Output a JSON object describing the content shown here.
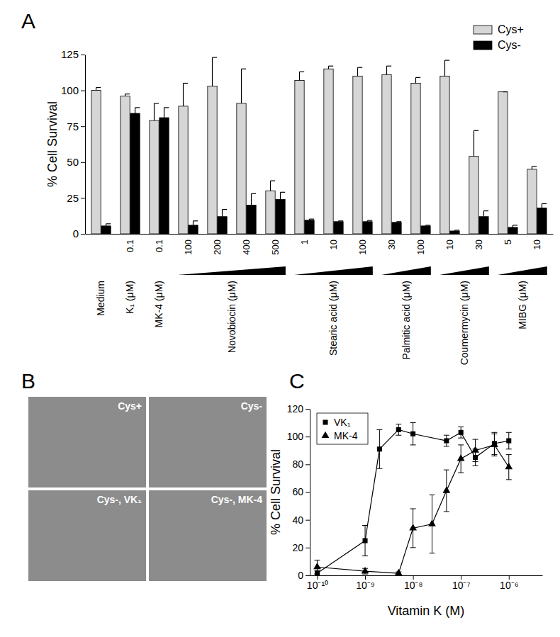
{
  "chart_data": [
    {
      "type": "bar",
      "title": "A",
      "y_label": "% Cell Survival",
      "categories": [
        null,
        "0.1",
        "0.1",
        "100",
        "200",
        "400",
        "500",
        "1",
        "10",
        "100",
        "30",
        "100",
        "10",
        "30",
        "5",
        "10"
      ],
      "groups": [
        {
          "name": "Medium",
          "count": 1
        },
        {
          "name": "K₁ (μM)",
          "count": 1
        },
        {
          "name": "MK-4 (μM)",
          "count": 1
        },
        {
          "name": "Novobiocin (μM)",
          "count": 4
        },
        {
          "name": "Stearic acid (μM)",
          "count": 3
        },
        {
          "name": "Palmitic acid (μM)",
          "count": 2
        },
        {
          "name": "Coumermycin (μM)",
          "count": 2
        },
        {
          "name": "MIBG (μM)",
          "count": 2
        }
      ],
      "series": [
        {
          "name": "Cys+",
          "color": "#d6d6d6",
          "values": [
            100,
            96,
            79,
            89,
            103,
            91,
            30,
            107,
            115,
            110,
            111,
            105,
            110,
            54,
            99,
            45
          ],
          "errors": [
            2,
            1.5,
            12,
            16,
            20,
            24,
            7,
            6,
            2,
            6,
            6,
            4,
            11,
            18,
            0,
            2
          ]
        },
        {
          "name": "Cys-",
          "color": "#000000",
          "values": [
            5.5,
            84,
            81,
            6,
            12,
            20,
            24,
            9.5,
            8.5,
            8.5,
            8,
            5.5,
            2,
            12,
            4.5,
            18
          ],
          "errors": [
            1.5,
            4,
            7,
            3,
            5,
            8,
            5,
            0.8,
            0.5,
            0.8,
            0.5,
            0.5,
            0.5,
            4,
            1.5,
            3
          ]
        }
      ],
      "ylim": [
        0,
        125
      ],
      "yticks": [
        0,
        25,
        50,
        75,
        100,
        125
      ],
      "legend": "top-right"
    },
    {
      "type": "image",
      "title": "B",
      "panels": [
        "Cys+",
        "Cys-",
        "Cys-, VK₁",
        "Cys-, MK-4"
      ]
    },
    {
      "type": "line",
      "title": "C",
      "x_label": "Vitamin K (M)",
      "y_label": "% Cell Survival",
      "log": "x",
      "xlim": [
        7e-11,
        5e-06
      ],
      "xticks": [
        {
          "value": 1e-10,
          "label": "10⁻¹⁰"
        },
        {
          "value": 1e-09,
          "label": "10⁻⁹"
        },
        {
          "value": 1e-08,
          "label": "10⁻⁸"
        },
        {
          "value": 1e-07,
          "label": "10⁻⁷"
        },
        {
          "value": 1e-06,
          "label": "10⁻⁶"
        }
      ],
      "ylim": [
        0,
        120
      ],
      "yticks": [
        0,
        20,
        40,
        60,
        80,
        100,
        120
      ],
      "legend": "top-left",
      "series": [
        {
          "name": "VK₁",
          "color": "#000000",
          "marker": "square",
          "x": [
            1e-10,
            1e-09,
            2e-09,
            5e-09,
            1e-08,
            5e-08,
            1e-07,
            2e-07,
            5e-07,
            1e-06
          ],
          "values": [
            1.5,
            25,
            91,
            105,
            102,
            97,
            103,
            85,
            95,
            97
          ],
          "errors": [
            2,
            11,
            14,
            4,
            8,
            4,
            4,
            6,
            8,
            6
          ]
        },
        {
          "name": "MK-4",
          "color": "#000000",
          "marker": "triangle",
          "x": [
            1e-10,
            1e-09,
            5e-09,
            1e-08,
            2.5e-08,
            5e-08,
            1e-07,
            2e-07,
            5e-07,
            1e-06
          ],
          "values": [
            6,
            3,
            1.5,
            34,
            37,
            61,
            84,
            90,
            94,
            78
          ],
          "errors": [
            5,
            2,
            1,
            14,
            21,
            15,
            10,
            8,
            8,
            9
          ]
        }
      ]
    }
  ]
}
